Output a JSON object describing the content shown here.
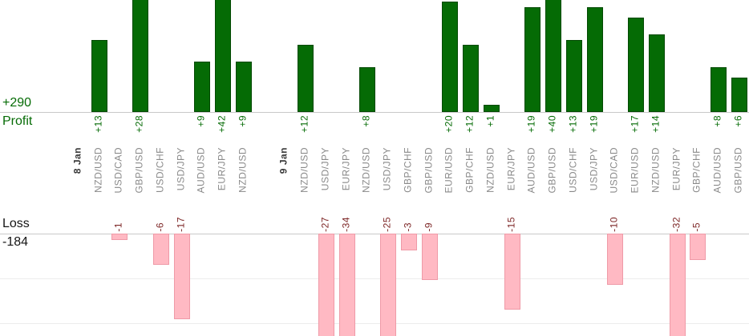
{
  "summary": {
    "profit_total": "+290",
    "profit_label": "Profit",
    "loss_label": "Loss",
    "loss_total": "-184"
  },
  "colors": {
    "profit_green": "#056b05",
    "profit_bar_border": "#034903",
    "loss_bar_pink": "#ffb9c3",
    "loss_bar_border": "#ef9aa7",
    "loss_value_text": "#7d2626",
    "loss_label_text": "#151515",
    "symbol_text": "#8a8a8a",
    "date_text": "#3a3a3a",
    "axis_line": "#c9c9c9",
    "grid_line": "#ececec"
  },
  "chart_data": {
    "type": "bar",
    "title": "",
    "xlabel": "",
    "ylabel_positive": "Profit",
    "ylabel_negative": "Loss",
    "grid": true,
    "totals": {
      "profit": 290,
      "loss": -184
    },
    "groups": [
      {
        "date": "8 Jan",
        "trades": [
          {
            "symbol": "NZD/USD",
            "value": 13
          },
          {
            "symbol": "USD/CAD",
            "value": -1
          },
          {
            "symbol": "GBP/USD",
            "value": 28
          },
          {
            "symbol": "USD/CHF",
            "value": -6
          },
          {
            "symbol": "USD/JPY",
            "value": -17
          },
          {
            "symbol": "AUD/USD",
            "value": 9
          },
          {
            "symbol": "EUR/JPY",
            "value": 42
          },
          {
            "symbol": "NZD/USD",
            "value": 9
          }
        ]
      },
      {
        "date": "9 Jan",
        "trades": [
          {
            "symbol": "NZD/USD",
            "value": 12
          },
          {
            "symbol": "USD/JPY",
            "value": -27
          },
          {
            "symbol": "EUR/JPY",
            "value": -34
          },
          {
            "symbol": "NZD/USD",
            "value": 8
          },
          {
            "symbol": "USD/JPY",
            "value": -25
          },
          {
            "symbol": "GBP/CHF",
            "value": -3
          },
          {
            "symbol": "GBP/USD",
            "value": -9
          },
          {
            "symbol": "EUR/USD",
            "value": 20
          },
          {
            "symbol": "GBP/CHF",
            "value": 12
          },
          {
            "symbol": "NZD/USD",
            "value": 1
          },
          {
            "symbol": "EUR/JPY",
            "value": -15
          },
          {
            "symbol": "AUD/USD",
            "value": 19
          },
          {
            "symbol": "GBP/USD",
            "value": 40
          },
          {
            "symbol": "USD/CHF",
            "value": 13
          },
          {
            "symbol": "USD/JPY",
            "value": 19
          },
          {
            "symbol": "USD/CAD",
            "value": -10
          },
          {
            "symbol": "EUR/USD",
            "value": 17
          },
          {
            "symbol": "NZD/USD",
            "value": 14
          },
          {
            "symbol": "EUR/JPY",
            "value": -32
          },
          {
            "symbol": "GBP/CHF",
            "value": -5
          },
          {
            "symbol": "AUD/USD",
            "value": 8
          },
          {
            "symbol": "GBP/USD",
            "value": 6
          }
        ]
      }
    ]
  }
}
